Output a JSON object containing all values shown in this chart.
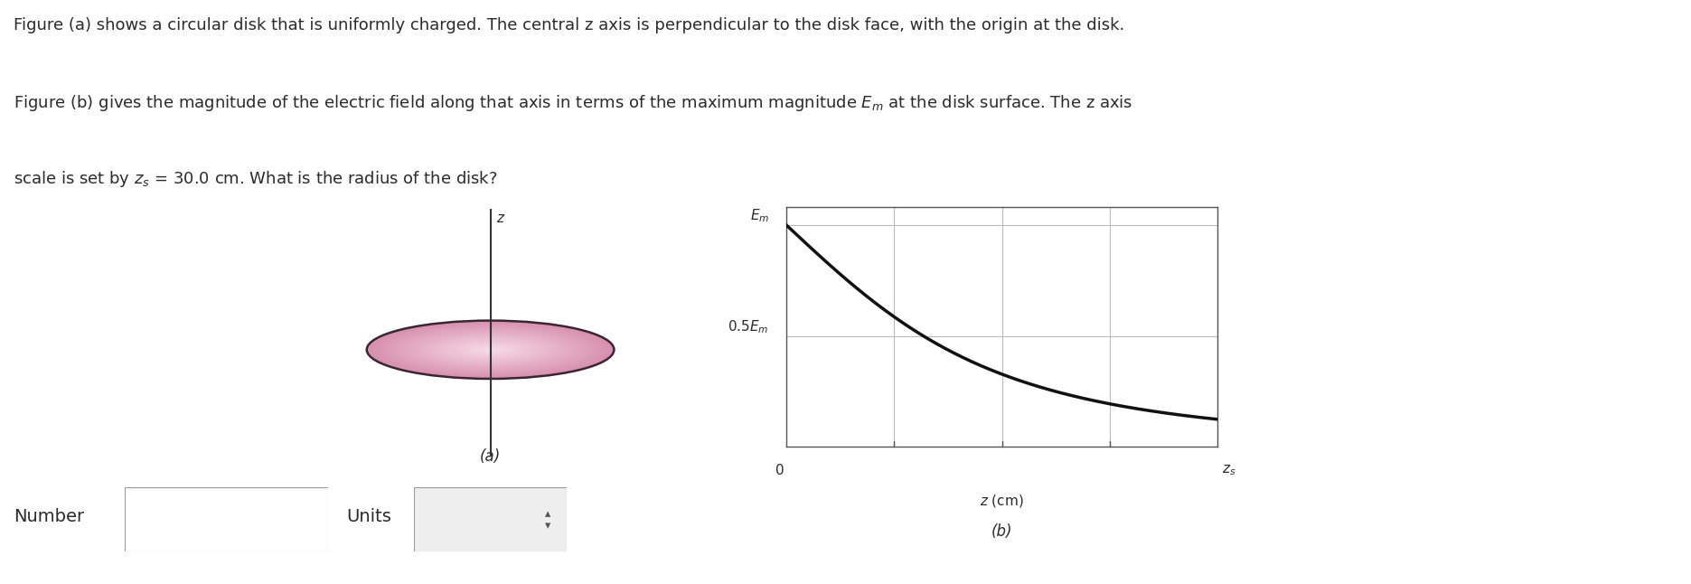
{
  "text_line1": "Figure (a) shows a circular disk that is uniformly charged. The central z axis is perpendicular to the disk face, with the origin at the disk.",
  "text_line2": "Figure (b) gives the magnitude of the electric field along that axis in terms of the maximum magnitude $E_m$ at the disk surface. The z axis",
  "text_line3": "scale is set by $z_s$ = 30.0 cm. What is the radius of the disk?",
  "fig_a_label": "(a)",
  "fig_b_label": "(b)",
  "disk_color_center": "#f2c8d8",
  "disk_color_edge_fill": "#d890b0",
  "disk_border_color": "#3a2535",
  "axis_color": "#333333",
  "z_label": "$z$",
  "graph_Em_label": "$E_m$",
  "graph_05Em_label": "$0.5E_m$",
  "graph_xlabel": "$z$ (cm)",
  "graph_zs_label": "$z_s$",
  "graph_0_label": "0",
  "curve_color": "#111111",
  "grid_color": "#bbbbbb",
  "number_label": "Number",
  "units_label": "Units",
  "number_box_color": "#3b8fd4",
  "bg_color": "#ffffff",
  "text_color": "#2a2a2a",
  "spine_color": "#555555"
}
